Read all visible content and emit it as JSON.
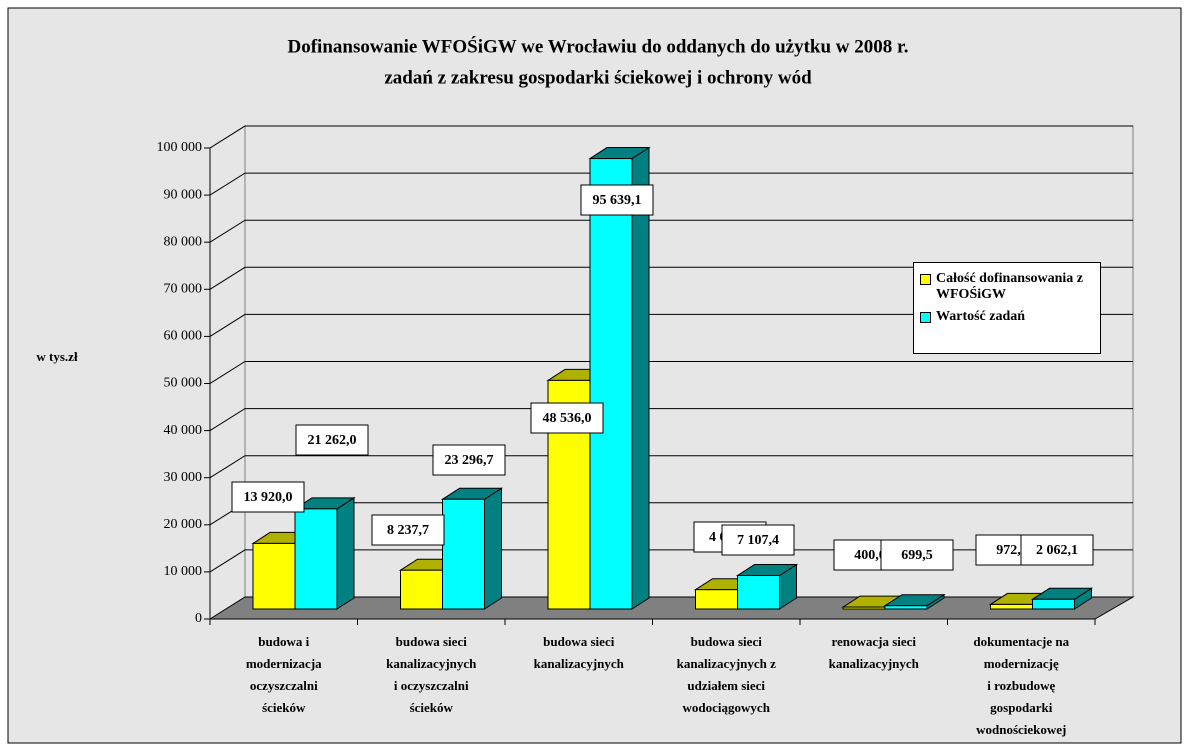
{
  "chart_data": {
    "type": "bar3d",
    "title": [
      "Dofinansowanie WFOŚiGW we Wrocławiu do oddanych do użytku w 2008 r.",
      "zadań z zakresu gospodarki ściekowej i ochrony wód"
    ],
    "y_label": "w tys.zł",
    "categories": [
      [
        "budowa i",
        "modernizacja",
        "oczyszczalni",
        "ścieków"
      ],
      [
        "budowa sieci",
        "kanalizacyjnych",
        "i oczyszczalni",
        "ścieków"
      ],
      [
        "budowa sieci",
        "kanalizacyjnych"
      ],
      [
        "budowa sieci",
        "kanalizacyjnych z",
        "udziałem sieci",
        "wodociągowych"
      ],
      [
        "renowacja sieci",
        "kanalizacyjnych"
      ],
      [
        "dokumentacje na",
        "modernizację",
        "i rozbudowę",
        "gospodarki",
        "wodnościekowej"
      ]
    ],
    "series": [
      {
        "name": "Całość dofinansowania z WFOŚiGW",
        "color": "#ffff00",
        "side": "#b0b000",
        "values": [
          13920.0,
          8237.7,
          48536.0,
          4098.7,
          400.0,
          972.5
        ],
        "value_labels": [
          "13 920,0",
          "8 237,7",
          "48 536,0",
          "4 098,7",
          "400,0",
          "972,5"
        ]
      },
      {
        "name": "Wartość zadań",
        "color": "#00ffff",
        "side": "#008080",
        "values": [
          21262.0,
          23296.7,
          95639.1,
          7107.4,
          699.5,
          2062.1
        ],
        "value_labels": [
          "21 262,0",
          "23 296,7",
          "95 639,1",
          "7 107,4",
          "699,5",
          "2 062,1"
        ]
      }
    ],
    "ylim": [
      0,
      100000
    ],
    "yticks": [
      0,
      {
        "value": 10000,
        "label": "10 000"
      },
      {
        "value": 20000,
        "label": "20 000"
      },
      {
        "value": 30000,
        "label": "30 000"
      },
      {
        "value": 40000,
        "label": "40 000"
      },
      {
        "value": 50000,
        "label": "50 000"
      },
      {
        "value": 60000,
        "label": "60 000"
      },
      {
        "value": 70000,
        "label": "70 000"
      },
      {
        "value": 80000,
        "label": "80 000"
      },
      {
        "value": 90000,
        "label": "90 000"
      },
      {
        "value": 100000,
        "label": "100 000"
      }
    ],
    "grid": true,
    "legend": "right"
  }
}
